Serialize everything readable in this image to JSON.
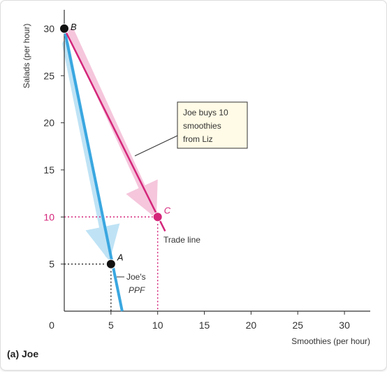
{
  "panel_label": "(a) Joe",
  "colors": {
    "ppf": "#3aa7e0",
    "ppf_shadow": "#bfe3f5",
    "trade": "#d4267a",
    "trade_shadow": "#f5c6dc",
    "point": "#111111",
    "axis": "#333333",
    "guide": "#333333"
  },
  "chart_data": {
    "type": "line",
    "xlabel": "Smoothies (per hour)",
    "ylabel": "Salads (per hour)",
    "xlim": [
      0,
      32
    ],
    "ylim": [
      0,
      31
    ],
    "x_ticks": [
      "0",
      "5",
      "10",
      "15",
      "20",
      "25",
      "30"
    ],
    "y_ticks": [
      "5",
      "10",
      "15",
      "20",
      "25",
      "30"
    ],
    "grid": false,
    "series": [
      {
        "name": "Joe's PPF",
        "points": [
          [
            0,
            30
          ],
          [
            6.2,
            0
          ]
        ],
        "color": "#3aa7e0"
      },
      {
        "name": "Trade line",
        "points": [
          [
            0,
            30
          ],
          [
            10.8,
            8.5
          ]
        ],
        "color": "#d4267a"
      }
    ],
    "points": [
      {
        "label": "B",
        "x": 0,
        "y": 30,
        "color": "#111111"
      },
      {
        "label": "A",
        "x": 5,
        "y": 5,
        "color": "#111111"
      },
      {
        "label": "C",
        "x": 10,
        "y": 10,
        "color": "#d4267a"
      }
    ],
    "annotations": {
      "callout": [
        "Joe buys 10",
        "smoothies",
        "from Liz"
      ],
      "trade_line_label": "Trade line",
      "ppf_label": [
        "Joe's",
        "PPF"
      ]
    }
  }
}
